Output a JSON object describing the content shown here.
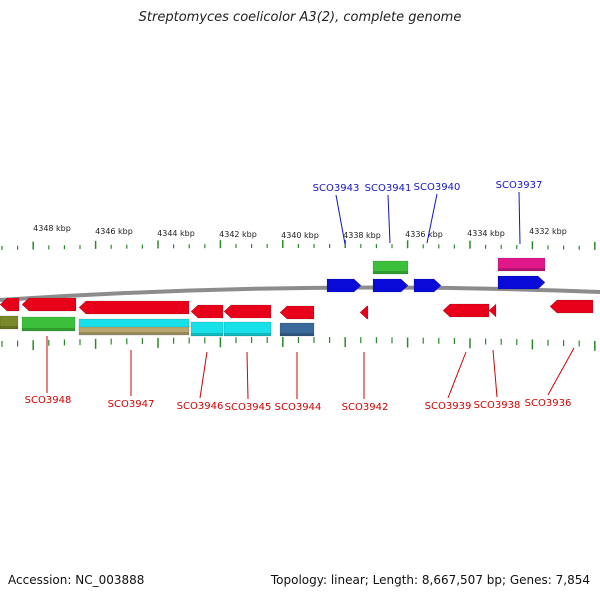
{
  "title": "Streptomyces coelicolor A3(2), complete genome",
  "footer": {
    "accession": "Accession: NC_003888",
    "topology": "Topology: linear; Length: 8,667,507 bp; Genes: 7,854"
  },
  "colors": {
    "forward_label": "#1414c8",
    "reverse_label": "#d40000",
    "forward_gene": "#0a0ad8",
    "reverse_gene": "#e8001a",
    "green": "#3cc03c",
    "magenta": "#e0188a",
    "cyan": "#18e0e8",
    "olive": "#7a8a2a",
    "khaki": "#b8a870",
    "steel": "#3a6a9a",
    "backbone": "#8c8c8c",
    "tick": "#2a8a2a"
  },
  "kbp_labels": [
    "4348 kbp",
    "4346 kbp",
    "4344 kbp",
    "4342 kbp",
    "4340 kbp",
    "4338 kbp",
    "4336 kbp",
    "4334 kbp",
    "4332 kbp"
  ],
  "forward_genes": [
    "SCO3943",
    "SCO3941",
    "SCO3940",
    "SCO3937"
  ],
  "reverse_genes": [
    "SCO3948",
    "SCO3947",
    "SCO3946",
    "SCO3945",
    "SCO3944",
    "SCO3942",
    "SCO3939",
    "SCO3938",
    "SCO3936"
  ]
}
